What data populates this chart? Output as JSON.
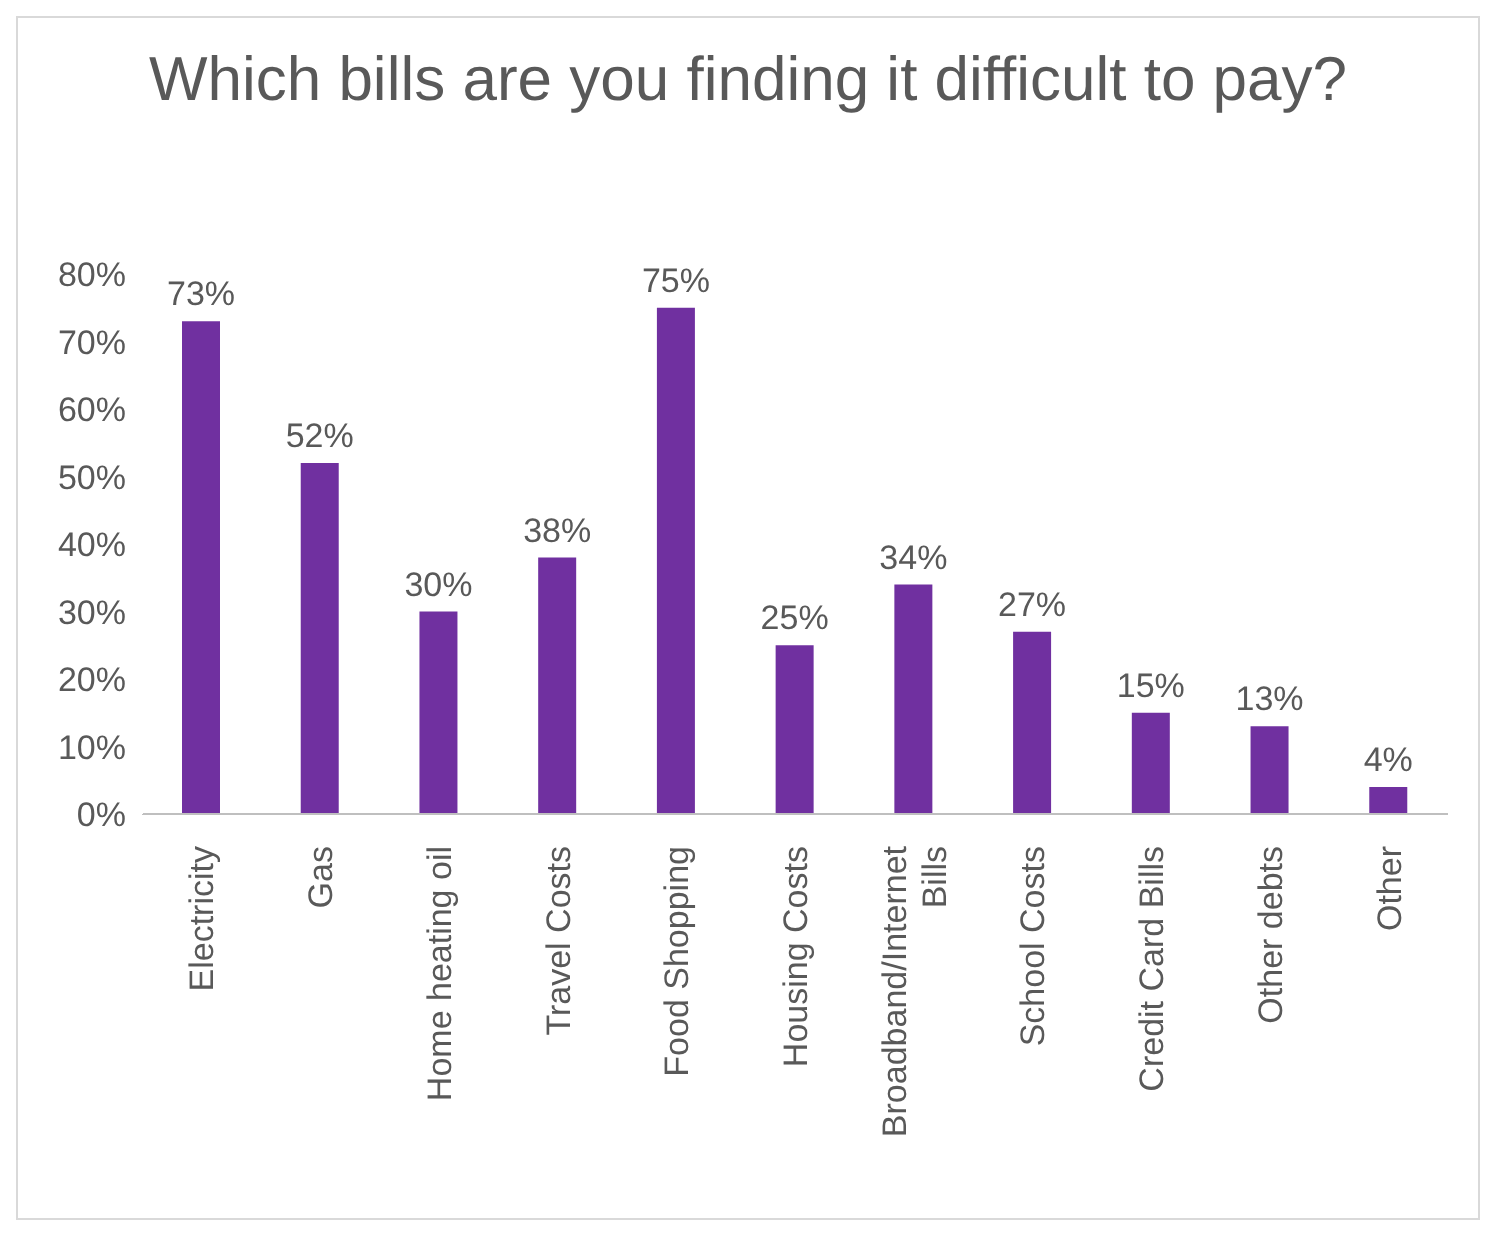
{
  "chart_data": {
    "type": "bar",
    "title": "Which bills are you finding it difficult to pay?",
    "categories": [
      "Electricity",
      "Gas",
      "Home heating oil",
      "Travel Costs",
      "Food Shopping",
      "Housing Costs",
      "Broadband/Internet Bills",
      "School Costs",
      "Credit Card Bills",
      "Other debts",
      "Other"
    ],
    "values": [
      73,
      52,
      30,
      38,
      75,
      25,
      34,
      27,
      15,
      13,
      4
    ],
    "value_labels": [
      "73%",
      "52%",
      "30%",
      "38%",
      "75%",
      "25%",
      "34%",
      "27%",
      "15%",
      "13%",
      "4%"
    ],
    "color": "#7030a0",
    "ylim": [
      0,
      80
    ],
    "yticks": [
      {
        "value": 0,
        "label": "0%"
      },
      {
        "value": 10,
        "label": "10%"
      },
      {
        "value": 20,
        "label": "20%"
      },
      {
        "value": 30,
        "label": "30%"
      },
      {
        "value": 40,
        "label": "40%"
      },
      {
        "value": 50,
        "label": "50%"
      },
      {
        "value": 60,
        "label": "60%"
      },
      {
        "value": 70,
        "label": "70%"
      },
      {
        "value": 80,
        "label": "80%"
      }
    ],
    "grid": false,
    "legend": false
  }
}
